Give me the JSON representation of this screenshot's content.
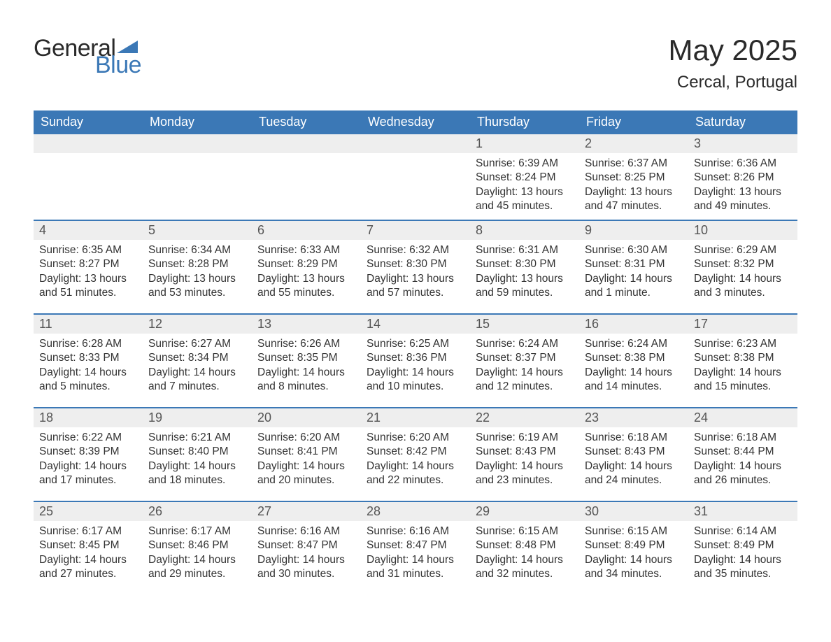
{
  "logo": {
    "text_general": "General",
    "text_blue": "Blue"
  },
  "title": "May 2025",
  "location": "Cercal, Portugal",
  "colors": {
    "header_bg": "#3b78b6",
    "header_text": "#ffffff",
    "daynum_bg": "#eeeeee",
    "daynum_text": "#555555",
    "body_text": "#333333",
    "page_bg": "#ffffff",
    "logo_blue": "#3b78b6",
    "logo_dark": "#2a2a2a"
  },
  "layout": {
    "type": "table",
    "columns": 7,
    "rows": 5,
    "daynum_fontsize": 18,
    "body_fontsize": 15.5,
    "header_fontsize": 18,
    "title_fontsize": 42,
    "location_fontsize": 24
  },
  "weekdays": [
    "Sunday",
    "Monday",
    "Tuesday",
    "Wednesday",
    "Thursday",
    "Friday",
    "Saturday"
  ],
  "weeks": [
    [
      null,
      null,
      null,
      null,
      {
        "n": "1",
        "sr": "6:39 AM",
        "ss": "8:24 PM",
        "dl": "13 hours and 45 minutes."
      },
      {
        "n": "2",
        "sr": "6:37 AM",
        "ss": "8:25 PM",
        "dl": "13 hours and 47 minutes."
      },
      {
        "n": "3",
        "sr": "6:36 AM",
        "ss": "8:26 PM",
        "dl": "13 hours and 49 minutes."
      }
    ],
    [
      {
        "n": "4",
        "sr": "6:35 AM",
        "ss": "8:27 PM",
        "dl": "13 hours and 51 minutes."
      },
      {
        "n": "5",
        "sr": "6:34 AM",
        "ss": "8:28 PM",
        "dl": "13 hours and 53 minutes."
      },
      {
        "n": "6",
        "sr": "6:33 AM",
        "ss": "8:29 PM",
        "dl": "13 hours and 55 minutes."
      },
      {
        "n": "7",
        "sr": "6:32 AM",
        "ss": "8:30 PM",
        "dl": "13 hours and 57 minutes."
      },
      {
        "n": "8",
        "sr": "6:31 AM",
        "ss": "8:30 PM",
        "dl": "13 hours and 59 minutes."
      },
      {
        "n": "9",
        "sr": "6:30 AM",
        "ss": "8:31 PM",
        "dl": "14 hours and 1 minute."
      },
      {
        "n": "10",
        "sr": "6:29 AM",
        "ss": "8:32 PM",
        "dl": "14 hours and 3 minutes."
      }
    ],
    [
      {
        "n": "11",
        "sr": "6:28 AM",
        "ss": "8:33 PM",
        "dl": "14 hours and 5 minutes."
      },
      {
        "n": "12",
        "sr": "6:27 AM",
        "ss": "8:34 PM",
        "dl": "14 hours and 7 minutes."
      },
      {
        "n": "13",
        "sr": "6:26 AM",
        "ss": "8:35 PM",
        "dl": "14 hours and 8 minutes."
      },
      {
        "n": "14",
        "sr": "6:25 AM",
        "ss": "8:36 PM",
        "dl": "14 hours and 10 minutes."
      },
      {
        "n": "15",
        "sr": "6:24 AM",
        "ss": "8:37 PM",
        "dl": "14 hours and 12 minutes."
      },
      {
        "n": "16",
        "sr": "6:24 AM",
        "ss": "8:38 PM",
        "dl": "14 hours and 14 minutes."
      },
      {
        "n": "17",
        "sr": "6:23 AM",
        "ss": "8:38 PM",
        "dl": "14 hours and 15 minutes."
      }
    ],
    [
      {
        "n": "18",
        "sr": "6:22 AM",
        "ss": "8:39 PM",
        "dl": "14 hours and 17 minutes."
      },
      {
        "n": "19",
        "sr": "6:21 AM",
        "ss": "8:40 PM",
        "dl": "14 hours and 18 minutes."
      },
      {
        "n": "20",
        "sr": "6:20 AM",
        "ss": "8:41 PM",
        "dl": "14 hours and 20 minutes."
      },
      {
        "n": "21",
        "sr": "6:20 AM",
        "ss": "8:42 PM",
        "dl": "14 hours and 22 minutes."
      },
      {
        "n": "22",
        "sr": "6:19 AM",
        "ss": "8:43 PM",
        "dl": "14 hours and 23 minutes."
      },
      {
        "n": "23",
        "sr": "6:18 AM",
        "ss": "8:43 PM",
        "dl": "14 hours and 24 minutes."
      },
      {
        "n": "24",
        "sr": "6:18 AM",
        "ss": "8:44 PM",
        "dl": "14 hours and 26 minutes."
      }
    ],
    [
      {
        "n": "25",
        "sr": "6:17 AM",
        "ss": "8:45 PM",
        "dl": "14 hours and 27 minutes."
      },
      {
        "n": "26",
        "sr": "6:17 AM",
        "ss": "8:46 PM",
        "dl": "14 hours and 29 minutes."
      },
      {
        "n": "27",
        "sr": "6:16 AM",
        "ss": "8:47 PM",
        "dl": "14 hours and 30 minutes."
      },
      {
        "n": "28",
        "sr": "6:16 AM",
        "ss": "8:47 PM",
        "dl": "14 hours and 31 minutes."
      },
      {
        "n": "29",
        "sr": "6:15 AM",
        "ss": "8:48 PM",
        "dl": "14 hours and 32 minutes."
      },
      {
        "n": "30",
        "sr": "6:15 AM",
        "ss": "8:49 PM",
        "dl": "14 hours and 34 minutes."
      },
      {
        "n": "31",
        "sr": "6:14 AM",
        "ss": "8:49 PM",
        "dl": "14 hours and 35 minutes."
      }
    ]
  ],
  "labels": {
    "sunrise": "Sunrise: ",
    "sunset": "Sunset: ",
    "daylight": "Daylight: "
  }
}
